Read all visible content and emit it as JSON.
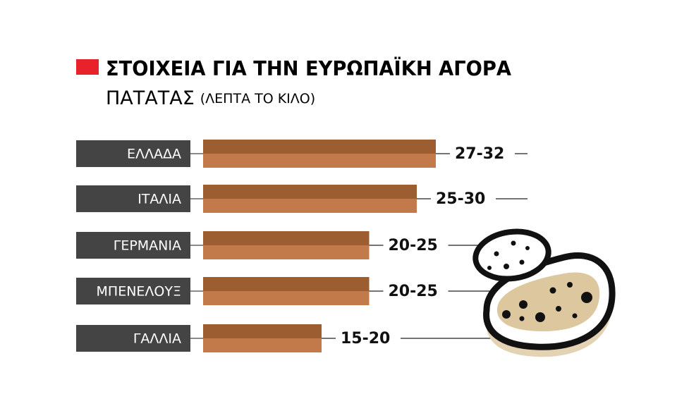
{
  "chart_data": {
    "type": "range-bar",
    "title": "ΣΤΟΙΧΕΙΑ ΓΙΑ ΤΗΝ ΕΥΡΩΠΑΪΚΗ ΑΓΟΡΑ",
    "subtitle": "ΠΑΤΑΤΑΣ",
    "unit": "(ΛΕΠΤΑ ΤΟ ΚΙΛΟ)",
    "categories": [
      "ΕΛΛΑΔΑ",
      "ΙΤΑΛΙΑ",
      "ΓΕΡΜΑΝΙΑ",
      "ΜΠΕΝΕΛΟΥΞ",
      "ΓΑΛΛΙΑ"
    ],
    "low": [
      27,
      25,
      20,
      20,
      15
    ],
    "high": [
      32,
      30,
      25,
      25,
      20
    ],
    "value_labels": [
      "27-32",
      "25-30",
      "20-25",
      "20-25",
      "15-20"
    ],
    "colors": {
      "top": "#9c5d30",
      "bottom": "#c27a4a",
      "label_box": "#444444",
      "accent": "#e8222b"
    }
  }
}
